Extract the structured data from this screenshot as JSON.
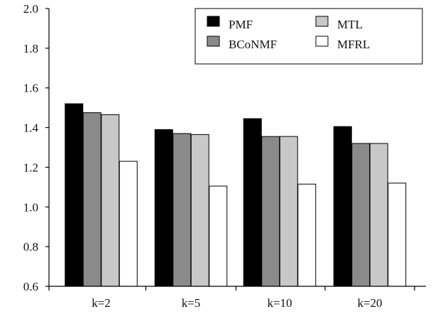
{
  "chart_data": {
    "type": "bar",
    "categories": [
      "k=2",
      "k=5",
      "k=10",
      "k=20"
    ],
    "series": [
      {
        "name": "PMF",
        "values": [
          1.52,
          1.39,
          1.445,
          1.405
        ],
        "color": "#000000"
      },
      {
        "name": "BCoNMF",
        "values": [
          1.475,
          1.37,
          1.355,
          1.32
        ],
        "color": "#8a8a8a"
      },
      {
        "name": "MTL",
        "values": [
          1.465,
          1.365,
          1.355,
          1.32
        ],
        "color": "#c8c8c8"
      },
      {
        "name": "MFRL",
        "values": [
          1.23,
          1.105,
          1.115,
          1.12
        ],
        "color": "#ffffff"
      }
    ],
    "ylim": [
      0.6,
      2.0
    ],
    "yticks": [
      "0.6",
      "0.8",
      "1.0",
      "1.2",
      "1.4",
      "1.6",
      "1.8",
      "2.0"
    ],
    "grid": false,
    "legend_position": "top-right",
    "legend_layout": [
      [
        "PMF",
        "MTL"
      ],
      [
        "BCoNMF",
        "MFRL"
      ]
    ],
    "title": "",
    "xlabel": "",
    "ylabel": ""
  }
}
